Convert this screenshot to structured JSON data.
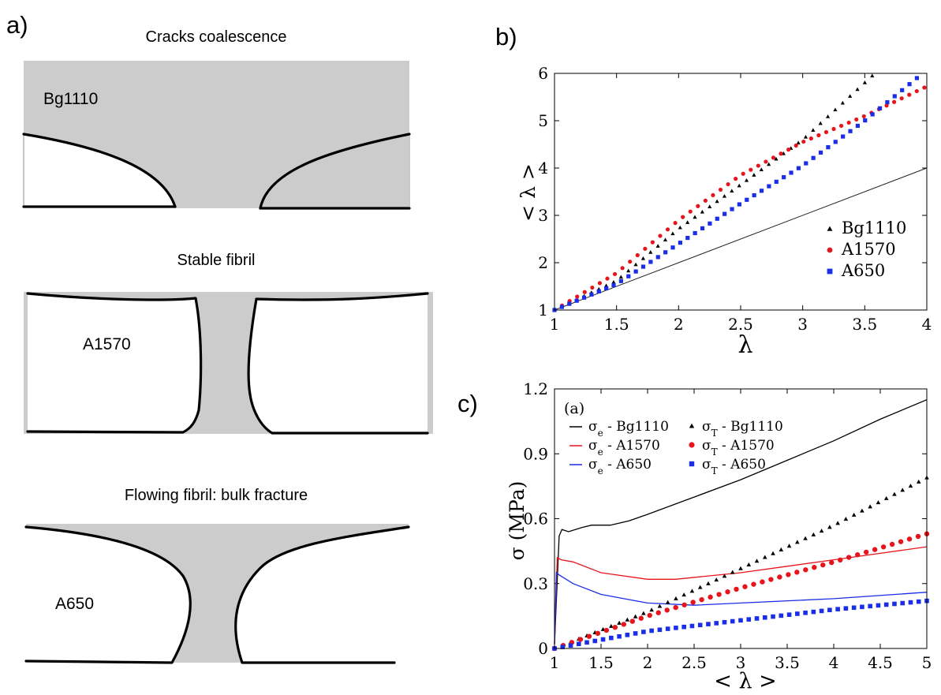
{
  "panel_a": {
    "label": "a)",
    "diagrams": [
      {
        "title": "Cracks coalescence",
        "sample": "Bg1110"
      },
      {
        "title": "Stable fibril",
        "sample": "A1570"
      },
      {
        "title": "Flowing fibril: bulk fracture",
        "sample": "A650"
      }
    ]
  },
  "panel_b": {
    "label": "b)"
  },
  "panel_c": {
    "label": "c)",
    "inset_label": "(a)"
  },
  "colors": {
    "Bg1110": "#000000",
    "A1570": "#e8141c",
    "A650": "#1a2ee8",
    "shape_fill": "#cccccc",
    "reference_line": "#222222"
  },
  "chart_data": [
    {
      "type": "scatter",
      "xlabel": "λ",
      "ylabel": "< λ >",
      "xlim": [
        1,
        4
      ],
      "ylim": [
        1,
        6
      ],
      "x_ticks": [
        "1",
        "1.5",
        "2",
        "2.5",
        "3",
        "3.5",
        "4"
      ],
      "y_ticks": [
        "1",
        "2",
        "3",
        "4",
        "5",
        "6"
      ],
      "legend_position": "bottom-right",
      "reference_line": {
        "x": [
          1,
          4
        ],
        "y": [
          1,
          4
        ]
      },
      "series": [
        {
          "name": "Bg1110",
          "marker": "triangle",
          "x_range": [
            1,
            3.56
          ],
          "points": 44,
          "curve": {
            "x": [
              1,
              1.5,
              2,
              2.5,
              3,
              3.56
            ],
            "y": [
              1,
              1.62,
              2.72,
              3.65,
              4.6,
              5.95
            ]
          }
        },
        {
          "name": "A1570",
          "marker": "circle",
          "x_range": [
            1,
            3.98
          ],
          "points": 50,
          "curve": {
            "x": [
              1,
              1.5,
              2,
              2.5,
              3,
              3.5,
              3.98
            ],
            "y": [
              1,
              1.78,
              2.9,
              3.85,
              4.55,
              5.1,
              5.7
            ]
          }
        },
        {
          "name": "A650",
          "marker": "square",
          "x_range": [
            1,
            3.92
          ],
          "points": 50,
          "curve": {
            "x": [
              1,
              1.5,
              2,
              2.5,
              3,
              3.5,
              3.92
            ],
            "y": [
              1,
              1.55,
              2.4,
              3.25,
              4.05,
              5.0,
              5.9
            ]
          }
        }
      ]
    },
    {
      "type": "line",
      "xlabel": "< λ >",
      "ylabel": "σ (MPa)",
      "xlim": [
        1,
        5
      ],
      "ylim": [
        0,
        1.2
      ],
      "x_ticks": [
        "1",
        "1.5",
        "2",
        "2.5",
        "3",
        "3.5",
        "4",
        "4.5",
        "5"
      ],
      "y_ticks": [
        "0",
        "0.3",
        "0.6",
        "0.9",
        "1.2"
      ],
      "legend_position": "top",
      "series": [
        {
          "name": "σe - Bg1110",
          "sym": "σ",
          "sub": "e",
          "sample": "Bg1110",
          "style": "line",
          "x": [
            1,
            1.05,
            1.08,
            1.15,
            1.3,
            1.4,
            1.6,
            1.8,
            2,
            2.5,
            3,
            3.5,
            4,
            4.5,
            5
          ],
          "y": [
            0.02,
            0.52,
            0.55,
            0.54,
            0.56,
            0.57,
            0.57,
            0.59,
            0.62,
            0.7,
            0.78,
            0.87,
            0.96,
            1.06,
            1.15
          ]
        },
        {
          "name": "σe - A1570",
          "sym": "σ",
          "sub": "e",
          "sample": "A1570",
          "style": "line",
          "x": [
            1,
            1.03,
            1.07,
            1.2,
            1.5,
            2,
            2.3,
            3,
            3.5,
            4,
            4.5,
            5
          ],
          "y": [
            0.02,
            0.42,
            0.41,
            0.4,
            0.35,
            0.32,
            0.32,
            0.35,
            0.38,
            0.41,
            0.44,
            0.47
          ]
        },
        {
          "name": "σe - A650",
          "sym": "σ",
          "sub": "e",
          "sample": "A650",
          "style": "line",
          "x": [
            1,
            1.02,
            1.05,
            1.2,
            1.5,
            2,
            2.5,
            3,
            4,
            5
          ],
          "y": [
            0.02,
            0.35,
            0.34,
            0.3,
            0.25,
            0.21,
            0.2,
            0.21,
            0.23,
            0.26
          ]
        },
        {
          "name": "σT - Bg1110",
          "sym": "σ",
          "sub": "T",
          "sample": "Bg1110",
          "style": "triangle",
          "x_range": [
            1,
            5
          ],
          "points": 47,
          "curve": {
            "x": [
              1,
              2,
              3,
              4,
              5
            ],
            "y": [
              0,
              0.17,
              0.37,
              0.57,
              0.79
            ]
          }
        },
        {
          "name": "σT - A1570",
          "sym": "σ",
          "sub": "T",
          "sample": "A1570",
          "style": "circle",
          "x_range": [
            1,
            5
          ],
          "points": 44,
          "curve": {
            "x": [
              1,
              2,
              3,
              4,
              5
            ],
            "y": [
              0,
              0.15,
              0.28,
              0.4,
              0.53
            ]
          }
        },
        {
          "name": "σT - A650",
          "sym": "σ",
          "sub": "T",
          "sample": "A650",
          "style": "square",
          "x_range": [
            1,
            5
          ],
          "points": 47,
          "curve": {
            "x": [
              1,
              2,
              3,
              4,
              5
            ],
            "y": [
              0,
              0.08,
              0.13,
              0.18,
              0.22
            ]
          }
        }
      ]
    }
  ]
}
